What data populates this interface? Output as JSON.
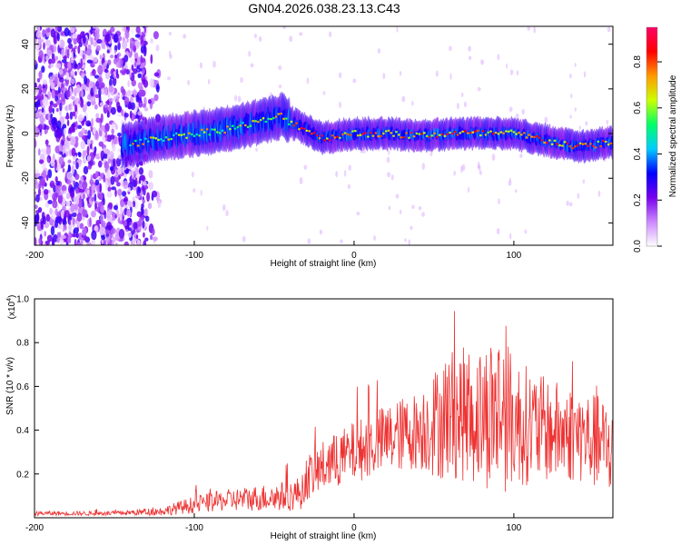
{
  "title": "GN04.2026.038.23.13.C43",
  "chart_data": [
    {
      "type": "heatmap",
      "title": "GN04.2026.038.23.13.C43",
      "xlabel": "Height of straight line (km)",
      "ylabel": "Frequency (Hz)",
      "xlim": [
        -200,
        162
      ],
      "ylim": [
        -50,
        48
      ],
      "xticks": [
        -200,
        -100,
        0,
        100
      ],
      "yticks": [
        -40,
        -20,
        0,
        20,
        40
      ],
      "colorbar": {
        "label": "Normalized spectral amplitude",
        "range": [
          0,
          0.95
        ],
        "ticks": [
          "0.0",
          "0.2",
          "0.4",
          "0.6",
          "0.8"
        ],
        "tick_values": [
          0,
          0.2,
          0.4,
          0.6,
          0.8
        ],
        "colors": [
          "#ffffff",
          "#cc88ff",
          "#7700ee",
          "#0000ff",
          "#00ccff",
          "#00ff66",
          "#ccff00",
          "#ff9900",
          "#ff0000",
          "#ff0066"
        ]
      },
      "ridge": {
        "x": [
          -140,
          -120,
          -100,
          -80,
          -60,
          -45,
          -40,
          -30,
          -20,
          -10,
          0,
          20,
          40,
          60,
          80,
          100,
          120,
          140,
          160
        ],
        "freq": [
          -5,
          -2,
          0,
          2,
          5,
          8,
          5,
          2,
          -2,
          -1,
          0,
          0,
          -1,
          0,
          0,
          0,
          -3,
          -6,
          -4
        ]
      },
      "noise_region_km": [
        -200,
        -130
      ]
    },
    {
      "type": "line",
      "xlabel": "Height of straight line (km)",
      "ylabel": "SNR (10 * v/v)",
      "yscale_label": "(x10",
      "yscale_exp": "4",
      "yscale_suffix": ")",
      "xlim": [
        -200,
        162
      ],
      "ylim": [
        0,
        1.0
      ],
      "xticks": [
        -200,
        -100,
        0,
        100
      ],
      "yticks": [
        0.2,
        0.4,
        0.6,
        0.8,
        1.0
      ],
      "ytick_labels": [
        "0.2",
        "0.4",
        "0.6",
        "0.8",
        "1.0"
      ],
      "series": [
        {
          "name": "SNR",
          "color": "#ee3333",
          "envelope_x": [
            -200,
            -150,
            -120,
            -100,
            -80,
            -60,
            -40,
            -32,
            -30,
            -20,
            0,
            20,
            40,
            55,
            60,
            80,
            90,
            100,
            120,
            140,
            160
          ],
          "envelope_mean": [
            0.02,
            0.02,
            0.03,
            0.06,
            0.08,
            0.09,
            0.1,
            0.12,
            0.18,
            0.23,
            0.3,
            0.36,
            0.4,
            0.45,
            0.48,
            0.46,
            0.5,
            0.44,
            0.4,
            0.38,
            0.32
          ],
          "envelope_amp": [
            0.01,
            0.01,
            0.02,
            0.04,
            0.05,
            0.06,
            0.07,
            0.08,
            0.1,
            0.12,
            0.14,
            0.16,
            0.18,
            0.28,
            0.3,
            0.32,
            0.4,
            0.3,
            0.24,
            0.22,
            0.22
          ]
        }
      ]
    }
  ]
}
